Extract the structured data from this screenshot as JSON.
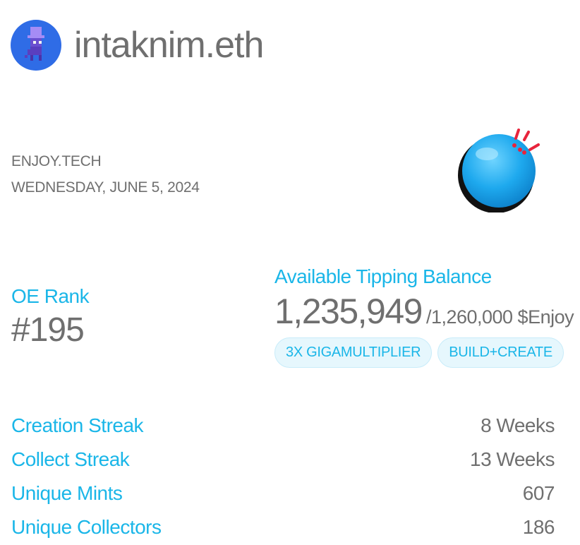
{
  "profile": {
    "username": "intaknim.eth",
    "avatar_icon": "purple-pixel-character-icon",
    "avatar_bg": "#2f6ce6"
  },
  "meta": {
    "brand": "ENJOY.TECH",
    "date": "WEDNESDAY, JUNE 5, 2024"
  },
  "illustration": {
    "icon": "blue-ball-icon",
    "color": "#1ab6e8",
    "accent": "#e8243c"
  },
  "rank": {
    "label": "OE Rank",
    "value": "#195"
  },
  "balance": {
    "label": "Available Tipping Balance",
    "value": "1,235,949",
    "total": "/1,260,000 $Enjoy",
    "badges": [
      "3X GIGAMULTIPLIER",
      "BUILD+CREATE"
    ]
  },
  "stats": [
    {
      "label": "Creation Streak",
      "value": "8 Weeks"
    },
    {
      "label": "Collect Streak",
      "value": "13 Weeks"
    },
    {
      "label": "Unique Mints",
      "value": "607"
    },
    {
      "label": "Unique Collectors",
      "value": "186"
    }
  ],
  "colors": {
    "accent": "#1ab6e8",
    "text": "#6f6f6f",
    "badge_bg": "#e6f7fd"
  }
}
